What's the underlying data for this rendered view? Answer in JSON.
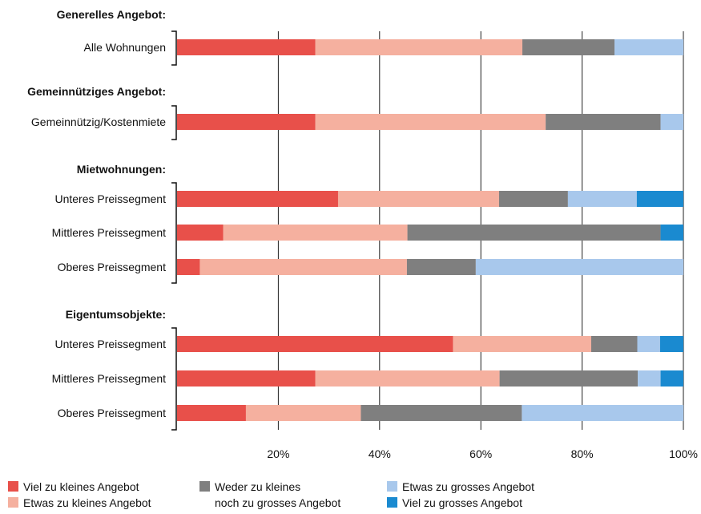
{
  "chart_data": {
    "type": "bar",
    "orientation": "horizontal",
    "stacked": true,
    "xlim": [
      0,
      100
    ],
    "x_ticks": [
      "20%",
      "40%",
      "60%",
      "80%",
      "100%"
    ],
    "grid": true,
    "legend_position": "bottom",
    "series": [
      {
        "name": "Viel zu kleines Angebot",
        "color": "#e8504a"
      },
      {
        "name": "Etwas zu kleines Angebot",
        "color": "#f5b09f"
      },
      {
        "name": "Weder zu kleines noch zu grosses Angebot",
        "name_lines": [
          "Weder zu kleines",
          "noch zu grosses Angebot"
        ],
        "color": "#7f7f7f"
      },
      {
        "name": "Etwas zu grosses Angebot",
        "color": "#a8c8ec"
      },
      {
        "name": "Viel zu grosses Angebot",
        "color": "#1a8ad0"
      }
    ],
    "groups": [
      {
        "title": "Generelles Angebot:",
        "rows": [
          {
            "label": "Alle Wohnungen",
            "values": [
              27.3,
              40.9,
              18.2,
              13.6,
              0
            ]
          }
        ]
      },
      {
        "title": "Gemeinnütziges Angebot:",
        "rows": [
          {
            "label": "Gemeinnützig/Kostenmiete",
            "values": [
              27.3,
              45.5,
              22.7,
              4.5,
              0
            ]
          }
        ]
      },
      {
        "title": "Mietwohnungen:",
        "rows": [
          {
            "label": "Unteres Preissegment",
            "values": [
              31.8,
              31.8,
              13.6,
              13.6,
              9.2
            ]
          },
          {
            "label": "Mittleres Preissegment",
            "values": [
              9.1,
              36.4,
              50.0,
              0,
              4.5
            ]
          },
          {
            "label": "Oberes Preissegment",
            "values": [
              4.5,
              40.9,
              13.6,
              41.0,
              0
            ]
          }
        ]
      },
      {
        "title": "Eigentumsobjekte:",
        "rows": [
          {
            "label": "Unteres Preissegment",
            "values": [
              54.5,
              27.3,
              9.1,
              4.5,
              4.6
            ]
          },
          {
            "label": "Mittleres Preissegment",
            "values": [
              27.3,
              36.4,
              27.3,
              4.5,
              4.5
            ]
          },
          {
            "label": "Oberes Preissegment",
            "values": [
              13.6,
              22.7,
              31.8,
              31.9,
              0
            ]
          }
        ]
      }
    ]
  }
}
